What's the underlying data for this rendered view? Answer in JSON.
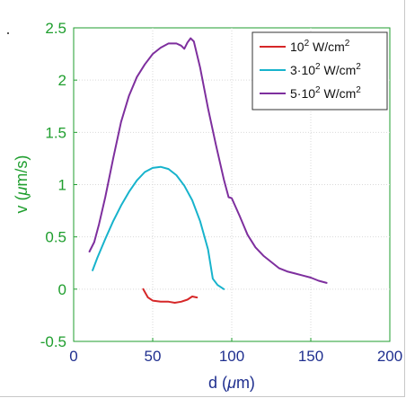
{
  "chart_data": {
    "type": "line",
    "xlabel": "d (μm)",
    "ylabel": "v (μm/s)",
    "xlim": [
      0,
      200
    ],
    "ylim": [
      -0.5,
      2.5
    ],
    "xticks": [
      0,
      50,
      100,
      150,
      200
    ],
    "yticks": [
      -0.5,
      0,
      0.5,
      1,
      1.5,
      2,
      2.5
    ],
    "grid": true,
    "legend_position": "top-right",
    "series": [
      {
        "name": "10^2 W/cm^2",
        "color": "#d62728",
        "x": [
          44,
          47,
          50,
          55,
          60,
          64,
          68,
          72,
          75,
          78
        ],
        "y": [
          0.0,
          -0.08,
          -0.11,
          -0.12,
          -0.12,
          -0.13,
          -0.12,
          -0.1,
          -0.07,
          -0.08
        ]
      },
      {
        "name": "3·10^2 W/cm^2",
        "color": "#17b3cc",
        "x": [
          12,
          15,
          20,
          25,
          30,
          35,
          40,
          45,
          50,
          55,
          60,
          65,
          70,
          75,
          80,
          85,
          88,
          91,
          95
        ],
        "y": [
          0.18,
          0.3,
          0.48,
          0.65,
          0.8,
          0.93,
          1.04,
          1.12,
          1.16,
          1.17,
          1.15,
          1.09,
          0.99,
          0.85,
          0.65,
          0.38,
          0.1,
          0.04,
          0.0
        ]
      },
      {
        "name": "5·10^2 W/cm^2",
        "color": "#7e2f9e",
        "x": [
          10,
          13,
          16,
          20,
          25,
          30,
          35,
          40,
          45,
          50,
          55,
          60,
          65,
          68,
          70,
          72,
          74,
          76,
          80,
          85,
          90,
          95,
          98,
          100,
          105,
          110,
          115,
          120,
          125,
          130,
          135,
          140,
          145,
          150,
          155,
          160
        ],
        "y": [
          0.36,
          0.45,
          0.62,
          0.88,
          1.25,
          1.6,
          1.85,
          2.03,
          2.15,
          2.25,
          2.31,
          2.35,
          2.35,
          2.33,
          2.3,
          2.36,
          2.4,
          2.37,
          2.12,
          1.73,
          1.38,
          1.05,
          0.88,
          0.87,
          0.7,
          0.52,
          0.4,
          0.32,
          0.26,
          0.2,
          0.17,
          0.15,
          0.13,
          0.11,
          0.08,
          0.06
        ]
      }
    ]
  }
}
